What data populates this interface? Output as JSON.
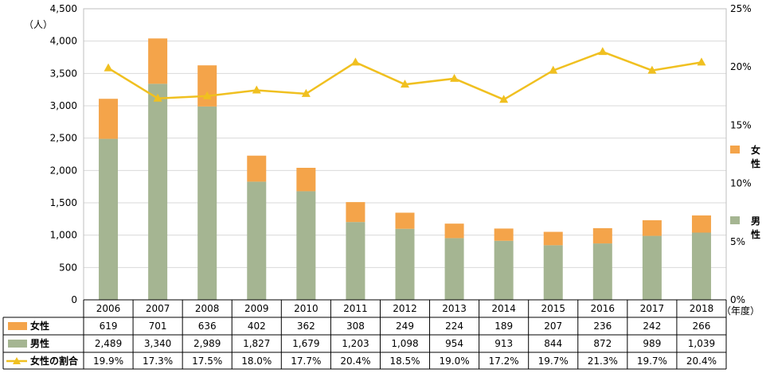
{
  "chart_data": {
    "type": "bar",
    "stacked": true,
    "categories": [
      "2006",
      "2007",
      "2008",
      "2009",
      "2010",
      "2011",
      "2012",
      "2013",
      "2014",
      "2015",
      "2016",
      "2017",
      "2018"
    ],
    "series": [
      {
        "name": "女性",
        "values": [
          619,
          701,
          636,
          402,
          362,
          308,
          249,
          224,
          189,
          207,
          236,
          242,
          266
        ],
        "color": "#f4a44a"
      },
      {
        "name": "男性",
        "values": [
          2489,
          3340,
          2989,
          1827,
          1679,
          1203,
          1098,
          954,
          913,
          844,
          872,
          989,
          1039
        ],
        "color": "#a5b592"
      },
      {
        "name": "女性の割合",
        "type": "line",
        "axis": "right",
        "values": [
          19.9,
          17.3,
          17.5,
          18.0,
          17.7,
          20.4,
          18.5,
          19.0,
          17.2,
          19.7,
          21.3,
          19.7,
          20.4
        ],
        "color": "#f0c020"
      }
    ],
    "table": {
      "rows": [
        {
          "label": "女性",
          "cells": [
            "619",
            "701",
            "636",
            "402",
            "362",
            "308",
            "249",
            "224",
            "189",
            "207",
            "236",
            "242",
            "266"
          ]
        },
        {
          "label": "男性",
          "cells": [
            "2,489",
            "3,340",
            "2,989",
            "1,827",
            "1,679",
            "1,203",
            "1,098",
            "954",
            "913",
            "844",
            "872",
            "989",
            "1,039"
          ]
        },
        {
          "label": "女性の割合",
          "cells": [
            "19.9%",
            "17.3%",
            "17.5%",
            "18.0%",
            "17.7%",
            "20.4%",
            "18.5%",
            "19.0%",
            "17.2%",
            "19.7%",
            "21.3%",
            "19.7%",
            "20.4%"
          ]
        }
      ]
    },
    "y_left": {
      "unit": "（人）",
      "min": 0,
      "max": 4500,
      "step": 500,
      "ticks": [
        "0",
        "500",
        "1,000",
        "1,500",
        "2,000",
        "2,500",
        "3,000",
        "3,500",
        "4,000",
        "4,500"
      ]
    },
    "y_right": {
      "min": 0,
      "max": 25,
      "step": 5,
      "ticks": [
        "0%",
        "5%",
        "10%",
        "15%",
        "20%",
        "25%"
      ]
    },
    "x_unit": "（年度）",
    "legend_right": [
      {
        "chars": [
          "女",
          "性"
        ],
        "color": "#f4a44a"
      },
      {
        "chars": [
          "男",
          "性"
        ],
        "color": "#a5b592"
      }
    ],
    "grid": true,
    "legend_placement": "right"
  }
}
